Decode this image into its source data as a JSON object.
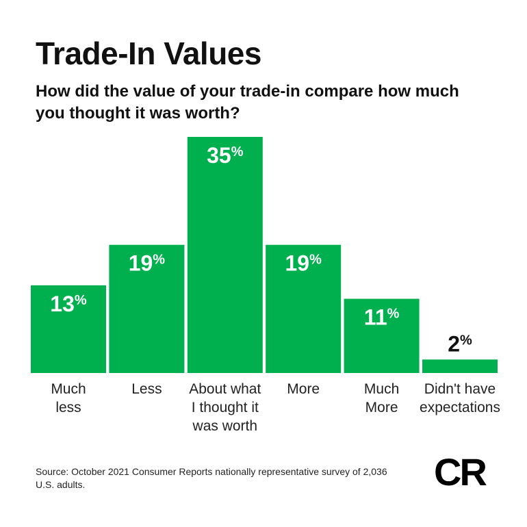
{
  "title": "Trade-In Values",
  "subtitle": "How did the value of your trade-in compare how much you thought it was worth?",
  "source": "Source: October 2021 Consumer Reports nationally representative survey of 2,036 U.S. adults.",
  "logo_text": "CR",
  "colors": {
    "bar": "#00b04f",
    "bar_label": "#ffffff",
    "outside_label": "#111111"
  },
  "chart_data": {
    "type": "bar",
    "categories": [
      [
        "Much",
        "less"
      ],
      [
        "Less"
      ],
      [
        "About what",
        "I thought it",
        "was worth"
      ],
      [
        "More"
      ],
      [
        "Much",
        "More"
      ],
      [
        "Didn't have",
        "expectations"
      ]
    ],
    "values": [
      13,
      19,
      35,
      19,
      11,
      2
    ],
    "value_labels": [
      "13",
      "19",
      "35",
      "19",
      "11",
      "2"
    ],
    "value_suffix": "%",
    "ylim": [
      0,
      35
    ],
    "grid": false,
    "title": "Trade-In Values",
    "xlabel": "",
    "ylabel": ""
  }
}
